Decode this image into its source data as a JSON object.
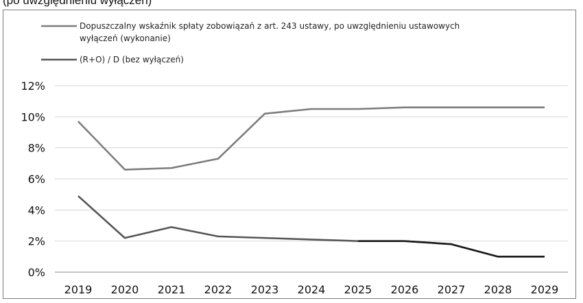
{
  "caption_fragment": "(po uwzględnieniu wyłączeń)",
  "chart_data": {
    "type": "line",
    "x": [
      "2019",
      "2020",
      "2021",
      "2022",
      "2023",
      "2024",
      "2025",
      "2026",
      "2027",
      "2028",
      "2029"
    ],
    "series": [
      {
        "name_lines": [
          "Dopuszczalny wskaźnik spłaty zobowiązań z art. 243 ustawy, po uwzględnieniu ustawowych",
          "wyłączeń (wykonanie)"
        ],
        "values": [
          9.7,
          6.6,
          6.7,
          7.3,
          10.2,
          10.5,
          10.5,
          10.6,
          10.6,
          10.6,
          10.6
        ],
        "color": "#7c7c7c"
      },
      {
        "name": "(R+O) / D (bez wyłączeń)",
        "values": [
          4.9,
          2.2,
          2.9,
          2.3,
          2.2,
          2.1,
          2.0,
          2.0,
          1.8,
          1.0,
          1.0
        ],
        "color": "#555555",
        "tail_color": "#1a1a1a"
      }
    ],
    "yticks": [
      "0%",
      "2%",
      "4%",
      "6%",
      "8%",
      "10%",
      "12%"
    ],
    "ylim": [
      0,
      12
    ],
    "grid": true,
    "legend_position": "top-left"
  }
}
